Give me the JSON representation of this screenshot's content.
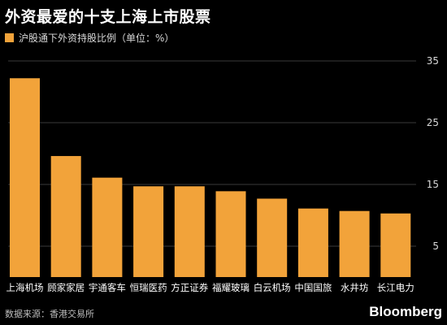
{
  "chart_data": {
    "type": "bar",
    "title": "外资最爱的十支上海上市股票",
    "legend": [
      {
        "name": "沪股通下外资持股比例（单位：%）",
        "color": "#F2A33A"
      }
    ],
    "categories": [
      "上海机场",
      "顾家家居",
      "宇通客车",
      "恒瑞医药",
      "方正证券",
      "福耀玻璃",
      "白云机场",
      "中国国旅",
      "水井坊",
      "长江电力"
    ],
    "series": [
      {
        "name": "沪股通下外资持股比例（单位：%）",
        "values": [
          32.2,
          19.6,
          16.1,
          14.7,
          14.7,
          13.9,
          12.7,
          11.1,
          10.7,
          10.3
        ]
      }
    ],
    "yticks": [
      5,
      15,
      25,
      35
    ],
    "ylim": [
      0,
      37
    ],
    "grid": true
  },
  "source": "数据来源：香港交易所",
  "brand": "Bloomberg",
  "colors": {
    "bar": "#F2A33A",
    "grid": "#3a3a3a",
    "axis_text": "#d8d8d8"
  }
}
